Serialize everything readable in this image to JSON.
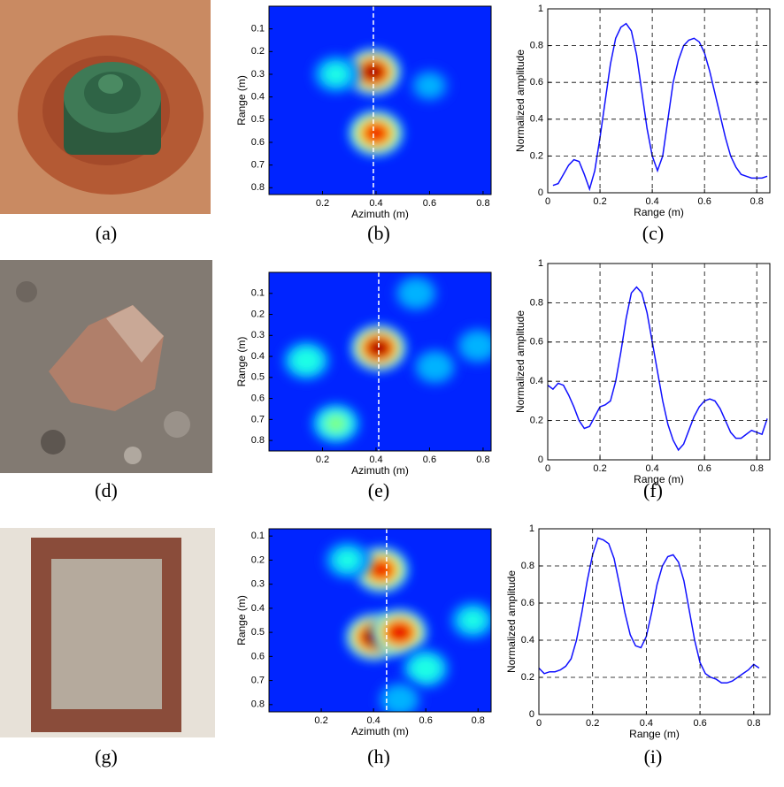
{
  "panel_labels": [
    "(a)",
    "(b)",
    "(c)",
    "(d)",
    "(e)",
    "(f)",
    "(g)",
    "(h)",
    "(i)"
  ],
  "chart_data": [
    {
      "type": "heatmap",
      "xlabel": "Azimuth (m)",
      "ylabel": "Range (m)",
      "xlim": [
        0,
        0.83
      ],
      "ylim": [
        0.83,
        0
      ],
      "xticks": [
        0.2,
        0.4,
        0.6,
        0.8
      ],
      "yticks": [
        0.1,
        0.2,
        0.3,
        0.4,
        0.5,
        0.6,
        0.7,
        0.8
      ],
      "marker_x": 0.39,
      "hotspots": [
        {
          "x": 0.39,
          "y": 0.29,
          "value": 1.0
        },
        {
          "x": 0.4,
          "y": 0.56,
          "value": 0.9
        },
        {
          "x": 0.25,
          "y": 0.3,
          "value": 0.4
        },
        {
          "x": 0.6,
          "y": 0.35,
          "value": 0.3
        }
      ]
    },
    {
      "type": "line",
      "xlabel": "Range (m)",
      "ylabel": "Normalized amplitude",
      "xlim": [
        0,
        0.85
      ],
      "ylim": [
        0,
        1
      ],
      "xticks": [
        0,
        0.2,
        0.4,
        0.6,
        0.8
      ],
      "yticks": [
        0,
        0.2,
        0.4,
        0.6,
        0.8,
        1
      ],
      "grid": true,
      "color": "#1010ff",
      "x": [
        0.02,
        0.04,
        0.06,
        0.08,
        0.1,
        0.12,
        0.14,
        0.16,
        0.18,
        0.2,
        0.22,
        0.24,
        0.26,
        0.28,
        0.3,
        0.32,
        0.34,
        0.36,
        0.38,
        0.4,
        0.42,
        0.44,
        0.46,
        0.48,
        0.5,
        0.52,
        0.54,
        0.56,
        0.58,
        0.6,
        0.62,
        0.64,
        0.66,
        0.68,
        0.7,
        0.72,
        0.74,
        0.76,
        0.78,
        0.8,
        0.82,
        0.84
      ],
      "values": [
        0.04,
        0.05,
        0.1,
        0.15,
        0.18,
        0.17,
        0.1,
        0.02,
        0.12,
        0.3,
        0.5,
        0.7,
        0.84,
        0.9,
        0.92,
        0.88,
        0.75,
        0.55,
        0.35,
        0.2,
        0.12,
        0.2,
        0.4,
        0.6,
        0.72,
        0.8,
        0.83,
        0.84,
        0.82,
        0.76,
        0.66,
        0.54,
        0.42,
        0.3,
        0.2,
        0.14,
        0.1,
        0.09,
        0.08,
        0.08,
        0.08,
        0.09
      ]
    },
    {
      "type": "heatmap",
      "xlabel": "Azimuth (m)",
      "ylabel": "Range (m)",
      "xlim": [
        0,
        0.83
      ],
      "ylim": [
        0.85,
        0
      ],
      "xticks": [
        0.2,
        0.4,
        0.6,
        0.8
      ],
      "yticks": [
        0.1,
        0.2,
        0.3,
        0.4,
        0.5,
        0.6,
        0.7,
        0.8
      ],
      "marker_x": 0.41,
      "hotspots": [
        {
          "x": 0.41,
          "y": 0.36,
          "value": 1.0
        },
        {
          "x": 0.14,
          "y": 0.42,
          "value": 0.45
        },
        {
          "x": 0.25,
          "y": 0.72,
          "value": 0.5
        },
        {
          "x": 0.62,
          "y": 0.45,
          "value": 0.35
        },
        {
          "x": 0.78,
          "y": 0.35,
          "value": 0.35
        },
        {
          "x": 0.55,
          "y": 0.1,
          "value": 0.35
        }
      ]
    },
    {
      "type": "line",
      "xlabel": "Range (m)",
      "ylabel": "Normalized amplitude",
      "xlim": [
        0,
        0.85
      ],
      "ylim": [
        0,
        1
      ],
      "xticks": [
        0,
        0.2,
        0.4,
        0.6,
        0.8
      ],
      "yticks": [
        0,
        0.2,
        0.4,
        0.6,
        0.8,
        1
      ],
      "grid": true,
      "color": "#1010ff",
      "x": [
        0,
        0.02,
        0.04,
        0.06,
        0.08,
        0.1,
        0.12,
        0.14,
        0.16,
        0.18,
        0.2,
        0.22,
        0.24,
        0.26,
        0.28,
        0.3,
        0.32,
        0.34,
        0.36,
        0.38,
        0.4,
        0.42,
        0.44,
        0.46,
        0.48,
        0.5,
        0.52,
        0.54,
        0.56,
        0.58,
        0.6,
        0.62,
        0.64,
        0.66,
        0.68,
        0.7,
        0.72,
        0.74,
        0.76,
        0.78,
        0.8,
        0.82,
        0.84
      ],
      "values": [
        0.38,
        0.36,
        0.39,
        0.38,
        0.33,
        0.27,
        0.2,
        0.16,
        0.17,
        0.22,
        0.27,
        0.28,
        0.3,
        0.4,
        0.55,
        0.72,
        0.85,
        0.88,
        0.85,
        0.75,
        0.6,
        0.45,
        0.3,
        0.18,
        0.1,
        0.05,
        0.08,
        0.15,
        0.22,
        0.27,
        0.3,
        0.31,
        0.3,
        0.26,
        0.2,
        0.14,
        0.11,
        0.11,
        0.13,
        0.15,
        0.14,
        0.13,
        0.21
      ]
    },
    {
      "type": "heatmap",
      "xlabel": "Azimuth (m)",
      "ylabel": "Range (m)",
      "xlim": [
        0,
        0.85
      ],
      "ylim": [
        0.83,
        0.07
      ],
      "xticks": [
        0.2,
        0.4,
        0.6,
        0.8
      ],
      "yticks": [
        0.1,
        0.2,
        0.3,
        0.4,
        0.5,
        0.6,
        0.7,
        0.8
      ],
      "marker_x": 0.45,
      "hotspots": [
        {
          "x": 0.43,
          "y": 0.24,
          "value": 0.9
        },
        {
          "x": 0.4,
          "y": 0.52,
          "value": 1.0
        },
        {
          "x": 0.5,
          "y": 0.5,
          "value": 0.95
        },
        {
          "x": 0.6,
          "y": 0.65,
          "value": 0.45
        },
        {
          "x": 0.78,
          "y": 0.45,
          "value": 0.4
        },
        {
          "x": 0.3,
          "y": 0.2,
          "value": 0.4
        },
        {
          "x": 0.5,
          "y": 0.78,
          "value": 0.35
        }
      ]
    },
    {
      "type": "line",
      "xlabel": "Range (m)",
      "ylabel": "Normalized amplitude",
      "xlim": [
        0,
        0.86
      ],
      "ylim": [
        0,
        1
      ],
      "xticks": [
        0,
        0.2,
        0.4,
        0.6,
        0.8
      ],
      "yticks": [
        0,
        0.2,
        0.4,
        0.6,
        0.8,
        1
      ],
      "grid": true,
      "color": "#1010ff",
      "x": [
        0,
        0.02,
        0.04,
        0.06,
        0.08,
        0.1,
        0.12,
        0.14,
        0.16,
        0.18,
        0.2,
        0.22,
        0.24,
        0.26,
        0.28,
        0.3,
        0.32,
        0.34,
        0.36,
        0.38,
        0.4,
        0.42,
        0.44,
        0.46,
        0.48,
        0.5,
        0.52,
        0.54,
        0.56,
        0.58,
        0.6,
        0.62,
        0.64,
        0.66,
        0.68,
        0.7,
        0.72,
        0.74,
        0.76,
        0.78,
        0.8,
        0.82
      ],
      "values": [
        0.25,
        0.22,
        0.23,
        0.23,
        0.24,
        0.26,
        0.3,
        0.4,
        0.55,
        0.72,
        0.86,
        0.95,
        0.94,
        0.92,
        0.84,
        0.7,
        0.55,
        0.43,
        0.37,
        0.36,
        0.42,
        0.55,
        0.7,
        0.8,
        0.85,
        0.86,
        0.82,
        0.72,
        0.56,
        0.4,
        0.28,
        0.22,
        0.2,
        0.19,
        0.17,
        0.17,
        0.18,
        0.2,
        0.22,
        0.24,
        0.27,
        0.25
      ]
    }
  ]
}
